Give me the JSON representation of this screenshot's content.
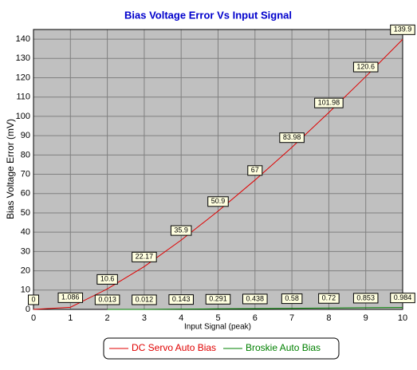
{
  "chart_data": {
    "type": "line",
    "title": "Bias Voltage Error Vs Input Signal",
    "xlabel": "Input Signal (peak)",
    "ylabel": "Bias Voltage Error (mV)",
    "xlim": [
      0,
      10
    ],
    "xticks": [
      0,
      1,
      2,
      3,
      4,
      5,
      6,
      7,
      8,
      9,
      10
    ],
    "ylim": [
      0,
      145
    ],
    "yticks": [
      0,
      10,
      20,
      30,
      40,
      50,
      60,
      70,
      80,
      90,
      100,
      110,
      120,
      130,
      140
    ],
    "grid": true,
    "series": [
      {
        "name": "DC Servo Auto Bias",
        "color": "#e00000",
        "x": [
          0,
          1,
          2,
          3,
          4,
          5,
          6,
          7,
          8,
          9,
          10
        ],
        "values": [
          0,
          1.086,
          10.6,
          22.17,
          35.9,
          50.9,
          67,
          83.98,
          101.98,
          120.6,
          139.9
        ]
      },
      {
        "name": "Broskie Auto Bias",
        "color": "#008000",
        "x": [
          2,
          3,
          4,
          5,
          6,
          7,
          8,
          9,
          10
        ],
        "values": [
          0.013,
          0.012,
          0.143,
          0.291,
          0.438,
          0.58,
          0.72,
          0.853,
          0.984
        ]
      }
    ]
  }
}
